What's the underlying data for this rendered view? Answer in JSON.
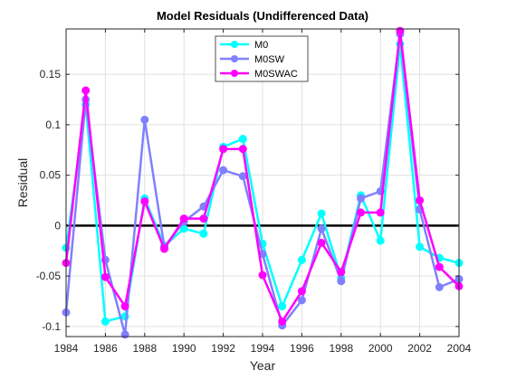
{
  "chart_data": {
    "type": "line",
    "title": "Model  Residuals  (Undifferenced  Data)",
    "xlabel": "Year",
    "ylabel": "Residual",
    "xlim": [
      1984,
      2004
    ],
    "ylim": [
      -0.11,
      0.195
    ],
    "xticks": [
      1984,
      1986,
      1988,
      1990,
      1992,
      1994,
      1996,
      1998,
      2000,
      2002,
      2004
    ],
    "xtick_labels": [
      "1984",
      "1986",
      "1988",
      "1990",
      "1992",
      "1994",
      "1996",
      "1998",
      "2000",
      "2002",
      "2004"
    ],
    "yticks": [
      -0.1,
      -0.05,
      0,
      0.05,
      0.1,
      0.15
    ],
    "ytick_labels": [
      "-0.1",
      "-0.05",
      "0",
      "0.05",
      "0.1",
      "0.15"
    ],
    "grid": true,
    "legend_position": "top-center",
    "zero_line": true,
    "x": [
      1984,
      1985,
      1986,
      1987,
      1988,
      1989,
      1990,
      1991,
      1992,
      1993,
      1994,
      1995,
      1996,
      1997,
      1998,
      1999,
      2000,
      2001,
      2002,
      2003,
      2004
    ],
    "series": [
      {
        "name": "M0",
        "color": "#00ffff",
        "values": [
          -0.022,
          0.12,
          -0.095,
          -0.09,
          0.027,
          -0.02,
          -0.003,
          -0.008,
          0.078,
          0.086,
          -0.018,
          -0.08,
          -0.034,
          0.012,
          -0.052,
          0.03,
          -0.015,
          0.18,
          -0.021,
          -0.032,
          -0.037
        ]
      },
      {
        "name": "M0SW",
        "color": "#8080ff",
        "values": [
          -0.086,
          0.125,
          -0.034,
          -0.108,
          0.105,
          -0.021,
          0.004,
          0.019,
          0.055,
          0.049,
          -0.028,
          -0.099,
          -0.074,
          -0.003,
          -0.055,
          0.027,
          0.034,
          0.19,
          0.016,
          -0.061,
          -0.053
        ]
      },
      {
        "name": "M0SWAC",
        "color": "#ff00ff",
        "values": [
          -0.037,
          0.134,
          -0.051,
          -0.08,
          0.024,
          -0.023,
          0.007,
          0.007,
          0.076,
          0.076,
          -0.049,
          -0.095,
          -0.065,
          -0.017,
          -0.046,
          0.013,
          0.013,
          0.193,
          0.025,
          -0.041,
          -0.06
        ]
      }
    ]
  }
}
